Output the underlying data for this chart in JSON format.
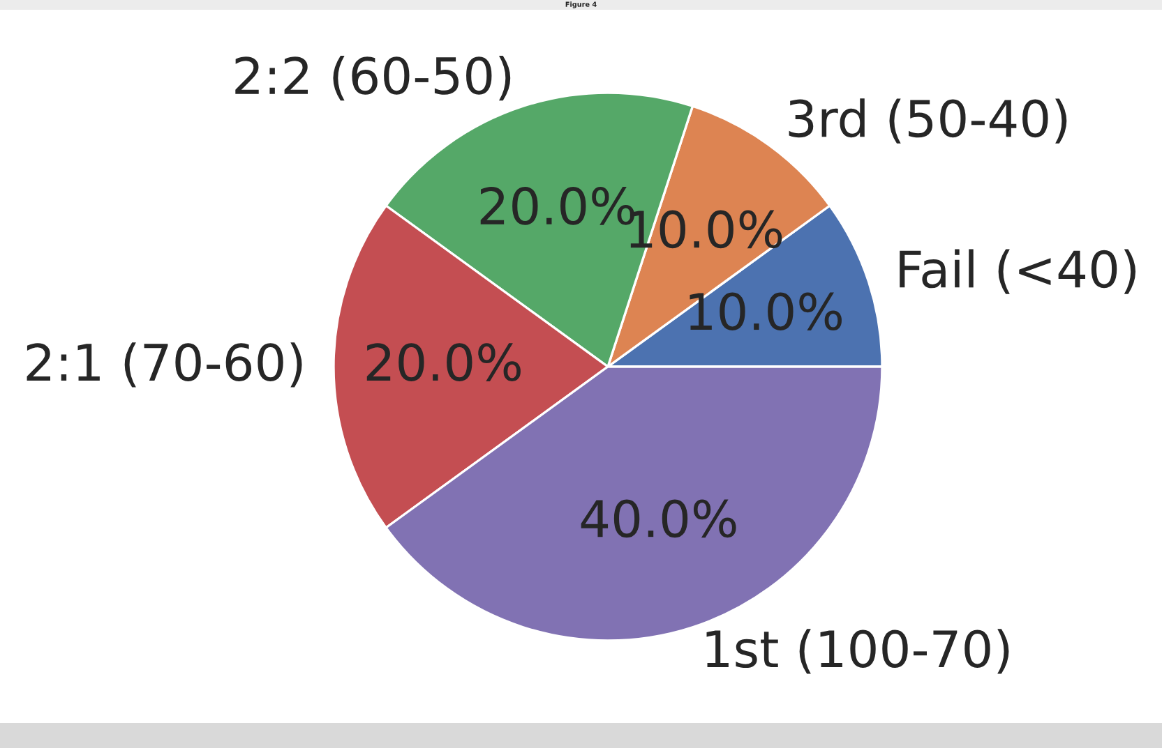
{
  "chart_data": {
    "type": "pie",
    "categories": [
      "Fail (<40)",
      "3rd (50-40)",
      "2:2 (60-50)",
      "2:1 (70-60)",
      "1st (100-70)"
    ],
    "values": [
      10,
      10,
      20,
      20,
      40
    ],
    "colors": [
      "#4c72b0",
      "#dd8452",
      "#55a868",
      "#c44e52",
      "#8172b3"
    ],
    "value_labels": [
      "10.0%",
      "10.0%",
      "20.0%",
      "20.0%",
      "40.0%"
    ],
    "annotations": [
      "Figure 4"
    ]
  }
}
